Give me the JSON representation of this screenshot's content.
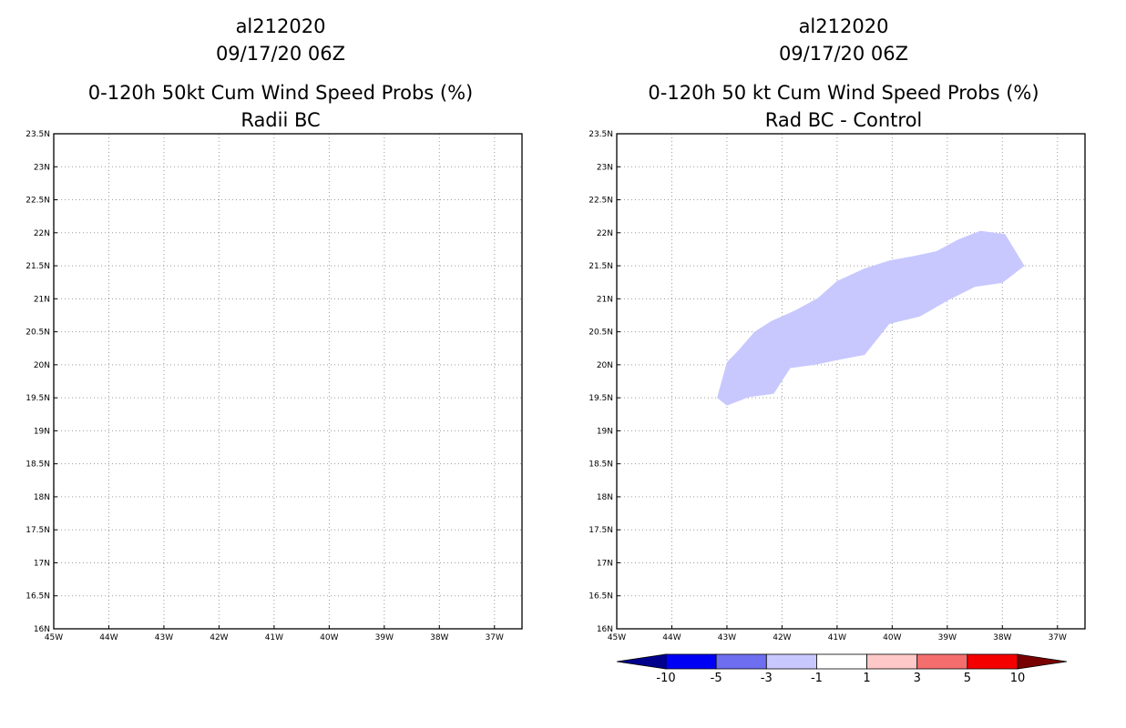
{
  "chart_data": [
    {
      "type": "filled_contour_map",
      "title_lines": [
        "al212020",
        "09/17/20 06Z",
        "0-120h 50kt Cum Wind Speed Probs (%)",
        "Radii BC"
      ],
      "xaxis": {
        "range": [
          -45,
          -36.5
        ],
        "ticks": [
          -45,
          -44,
          -43,
          -42,
          -41,
          -40,
          -39,
          -38,
          -37
        ],
        "tick_labels": [
          "45W",
          "44W",
          "43W",
          "42W",
          "41W",
          "40W",
          "39W",
          "38W",
          "37W"
        ]
      },
      "yaxis": {
        "range": [
          16,
          23.5
        ],
        "ticks": [
          16,
          16.5,
          17,
          17.5,
          18,
          18.5,
          19,
          19.5,
          20,
          20.5,
          21,
          21.5,
          22,
          22.5,
          23,
          23.5
        ],
        "tick_labels": [
          "16N",
          "16.5N",
          "17N",
          "17.5N",
          "18N",
          "18.5N",
          "19N",
          "19.5N",
          "20N",
          "20.5N",
          "21N",
          "21.5N",
          "22N",
          "22.5N",
          "23N",
          "23.5N"
        ]
      },
      "grid": true,
      "shaded_regions": []
    },
    {
      "type": "filled_contour_map",
      "title_lines": [
        "al212020",
        "09/17/20 06Z",
        "0-120h 50 kt Cum Wind Speed Probs (%)",
        "Rad BC - Control"
      ],
      "xaxis": {
        "range": [
          -45,
          -36.5
        ],
        "ticks": [
          -45,
          -44,
          -43,
          -42,
          -41,
          -40,
          -39,
          -38,
          -37
        ],
        "tick_labels": [
          "45W",
          "44W",
          "43W",
          "42W",
          "41W",
          "40W",
          "39W",
          "38W",
          "37W"
        ]
      },
      "yaxis": {
        "range": [
          16,
          23.5
        ],
        "ticks": [
          16,
          16.5,
          17,
          17.5,
          18,
          18.5,
          19,
          19.5,
          20,
          20.5,
          21,
          21.5,
          22,
          22.5,
          23,
          23.5
        ],
        "tick_labels": [
          "16N",
          "16.5N",
          "17N",
          "17.5N",
          "18N",
          "18.5N",
          "19N",
          "19.5N",
          "20N",
          "20.5N",
          "21N",
          "21.5N",
          "22N",
          "22.5N",
          "23N",
          "23.5N"
        ]
      },
      "grid": true,
      "shaded_regions": [
        {
          "name": "difference -3 to -1",
          "color": "#c8c8ff",
          "lon_lat": [
            [
              -43.18,
              19.5
            ],
            [
              -43.0,
              19.38
            ],
            [
              -42.6,
              19.51
            ],
            [
              -42.15,
              19.56
            ],
            [
              -41.85,
              19.95
            ],
            [
              -41.4,
              20.0
            ],
            [
              -41.0,
              20.07
            ],
            [
              -40.5,
              20.15
            ],
            [
              -40.05,
              20.62
            ],
            [
              -39.5,
              20.73
            ],
            [
              -39.0,
              20.97
            ],
            [
              -38.5,
              21.18
            ],
            [
              -38.0,
              21.24
            ],
            [
              -37.6,
              21.5
            ],
            [
              -37.95,
              21.98
            ],
            [
              -38.4,
              22.03
            ],
            [
              -38.8,
              21.9
            ],
            [
              -39.2,
              21.72
            ],
            [
              -39.6,
              21.65
            ],
            [
              -40.05,
              21.58
            ],
            [
              -40.5,
              21.46
            ],
            [
              -41.0,
              21.27
            ],
            [
              -41.35,
              21.01
            ],
            [
              -41.75,
              20.83
            ],
            [
              -42.2,
              20.66
            ],
            [
              -42.5,
              20.5
            ],
            [
              -42.8,
              20.21
            ],
            [
              -43.0,
              20.04
            ],
            [
              -43.18,
              19.5
            ]
          ]
        }
      ],
      "colorbar": {
        "labels": [
          "-10",
          "-5",
          "-3",
          "-1",
          "1",
          "3",
          "5",
          "10"
        ],
        "colors": [
          "#00008c",
          "#0000f5",
          "#6e6ef0",
          "#c8c8ff",
          "#ffffff",
          "#ffc8c8",
          "#f56e6e",
          "#f50000",
          "#780000"
        ]
      }
    }
  ]
}
